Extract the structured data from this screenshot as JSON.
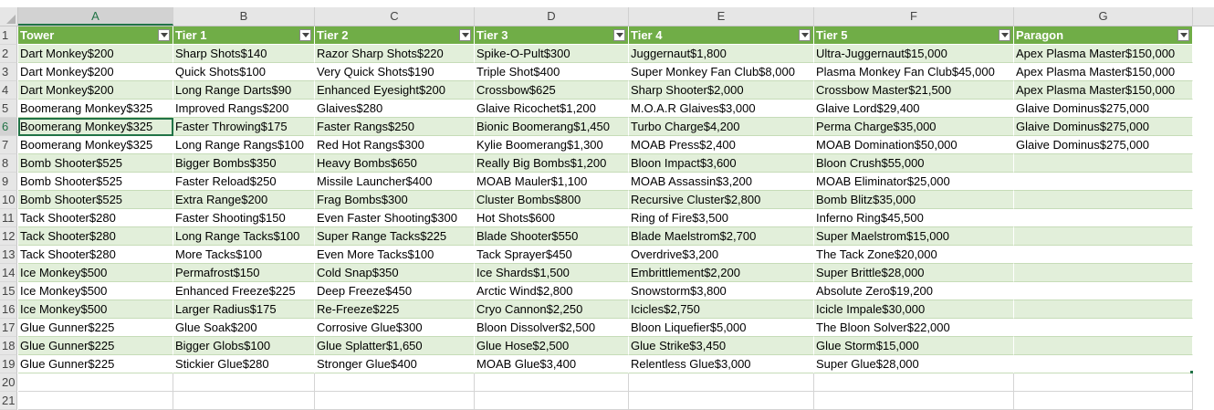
{
  "columns": [
    "A",
    "B",
    "C",
    "D",
    "E",
    "F",
    "G"
  ],
  "row_numbers": [
    "1",
    "2",
    "3",
    "4",
    "5",
    "6",
    "7",
    "8",
    "9",
    "10",
    "11",
    "12",
    "13",
    "14",
    "15",
    "16",
    "17",
    "18",
    "19",
    "20",
    "21"
  ],
  "header": [
    "Tower",
    "Tier 1",
    "Tier 2",
    "Tier 3",
    "Tier 4",
    "Tier 5",
    "Paragon"
  ],
  "rows": [
    [
      "Dart Monkey$200",
      "Sharp Shots$140",
      "Razor Sharp Shots$220",
      "Spike-O-Pult$300",
      "Juggernaut$1,800",
      "Ultra-Juggernaut$15,000",
      "Apex Plasma Master$150,000"
    ],
    [
      "Dart Monkey$200",
      "Quick Shots$100",
      "Very Quick Shots$190",
      "Triple Shot$400",
      "Super Monkey Fan Club$8,000",
      "Plasma Monkey Fan Club$45,000",
      "Apex Plasma Master$150,000"
    ],
    [
      "Dart Monkey$200",
      "Long Range Darts$90",
      "Enhanced Eyesight$200",
      "Crossbow$625",
      "Sharp Shooter$2,000",
      "Crossbow Master$21,500",
      "Apex Plasma Master$150,000"
    ],
    [
      "Boomerang Monkey$325",
      "Improved Rangs$200",
      "Glaives$280",
      "Glaive Ricochet$1,200",
      "M.O.A.R Glaives$3,000",
      "Glaive Lord$29,400",
      "Glaive Dominus$275,000"
    ],
    [
      "Boomerang Monkey$325",
      "Faster Throwing$175",
      "Faster Rangs$250",
      "Bionic Boomerang$1,450",
      "Turbo Charge$4,200",
      "Perma Charge$35,000",
      "Glaive Dominus$275,000"
    ],
    [
      "Boomerang Monkey$325",
      "Long Range Rangs$100",
      "Red Hot Rangs$300",
      "Kylie Boomerang$1,300",
      "MOAB Press$2,400",
      "MOAB Domination$50,000",
      "Glaive Dominus$275,000"
    ],
    [
      "Bomb Shooter$525",
      "Bigger Bombs$350",
      "Heavy Bombs$650",
      "Really Big Bombs$1,200",
      "Bloon Impact$3,600",
      "Bloon Crush$55,000",
      ""
    ],
    [
      "Bomb Shooter$525",
      "Faster Reload$250",
      "Missile Launcher$400",
      "MOAB Mauler$1,100",
      "MOAB Assassin$3,200",
      "MOAB Eliminator$25,000",
      ""
    ],
    [
      "Bomb Shooter$525",
      "Extra Range$200",
      "Frag Bombs$300",
      "Cluster Bombs$800",
      "Recursive Cluster$2,800",
      "Bomb Blitz$35,000",
      ""
    ],
    [
      "Tack Shooter$280",
      "Faster Shooting$150",
      "Even Faster Shooting$300",
      "Hot Shots$600",
      "Ring of Fire$3,500",
      "Inferno Ring$45,500",
      ""
    ],
    [
      "Tack Shooter$280",
      "Long Range Tacks$100",
      "Super Range Tacks$225",
      "Blade Shooter$550",
      "Blade Maelstrom$2,700",
      "Super Maelstrom$15,000",
      ""
    ],
    [
      "Tack Shooter$280",
      "More Tacks$100",
      "Even More Tacks$100",
      "Tack Sprayer$450",
      "Overdrive$3,200",
      "The Tack Zone$20,000",
      ""
    ],
    [
      "Ice Monkey$500",
      "Permafrost$150",
      "Cold Snap$350",
      "Ice Shards$1,500",
      "Embrittlement$2,200",
      "Super Brittle$28,000",
      ""
    ],
    [
      "Ice Monkey$500",
      "Enhanced Freeze$225",
      "Deep Freeze$450",
      "Arctic Wind$2,800",
      "Snowstorm$3,800",
      "Absolute Zero$19,200",
      ""
    ],
    [
      "Ice Monkey$500",
      "Larger Radius$175",
      "Re-Freeze$225",
      "Cryo Cannon$2,250",
      "Icicles$2,750",
      "Icicle Impale$30,000",
      ""
    ],
    [
      "Glue Gunner$225",
      "Glue Soak$200",
      "Corrosive Glue$300",
      "Bloon Dissolver$2,500",
      "Bloon Liquefier$5,000",
      "The Bloon Solver$22,000",
      ""
    ],
    [
      "Glue Gunner$225",
      "Bigger Globs$100",
      "Glue Splatter$1,650",
      "Glue Hose$2,500",
      "Glue Strike$3,450",
      "Glue Storm$15,000",
      ""
    ],
    [
      "Glue Gunner$225",
      "Stickier Glue$280",
      "Stronger Glue$400",
      "MOAB Glue$3,400",
      "Relentless Glue$3,000",
      "Super Glue$28,000",
      ""
    ]
  ],
  "selected_cell": "A6",
  "colors": {
    "header_fill": "#70ad47",
    "band_fill": "#e2efda",
    "accent": "#217346"
  }
}
